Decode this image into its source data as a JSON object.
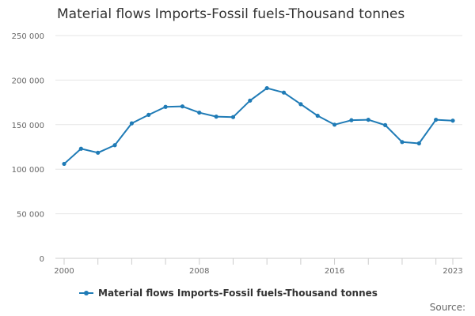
{
  "chart_data": {
    "type": "line",
    "title": "Material flows Imports-Fossil fuels-Thousand tonnes",
    "xlabel": "",
    "ylabel": "",
    "x": [
      2000,
      2001,
      2002,
      2003,
      2004,
      2005,
      2006,
      2007,
      2008,
      2009,
      2010,
      2011,
      2012,
      2013,
      2014,
      2015,
      2016,
      2017,
      2018,
      2019,
      2020,
      2021,
      2022,
      2023
    ],
    "series": [
      {
        "name": "Material flows Imports-Fossil fuels-Thousand tonnes",
        "color": "#1f7bb6",
        "values": [
          106000,
          123000,
          118500,
          127000,
          151500,
          161000,
          170000,
          170500,
          163500,
          159000,
          158500,
          177000,
          191000,
          186000,
          173000,
          160000,
          150000,
          155000,
          155500,
          149500,
          130500,
          129000,
          155500,
          154500
        ]
      }
    ],
    "ylim": [
      0,
      250000
    ],
    "y_ticks": [
      0,
      50000,
      100000,
      150000,
      200000,
      250000
    ],
    "y_tick_labels": [
      "0",
      "50 000",
      "100 000",
      "150 000",
      "200 000",
      "250 000"
    ],
    "x_tick_labels": [
      "2000",
      "2008",
      "2016",
      "2023"
    ],
    "grid": true,
    "legend_position": "bottom"
  },
  "source_label": "Source:"
}
